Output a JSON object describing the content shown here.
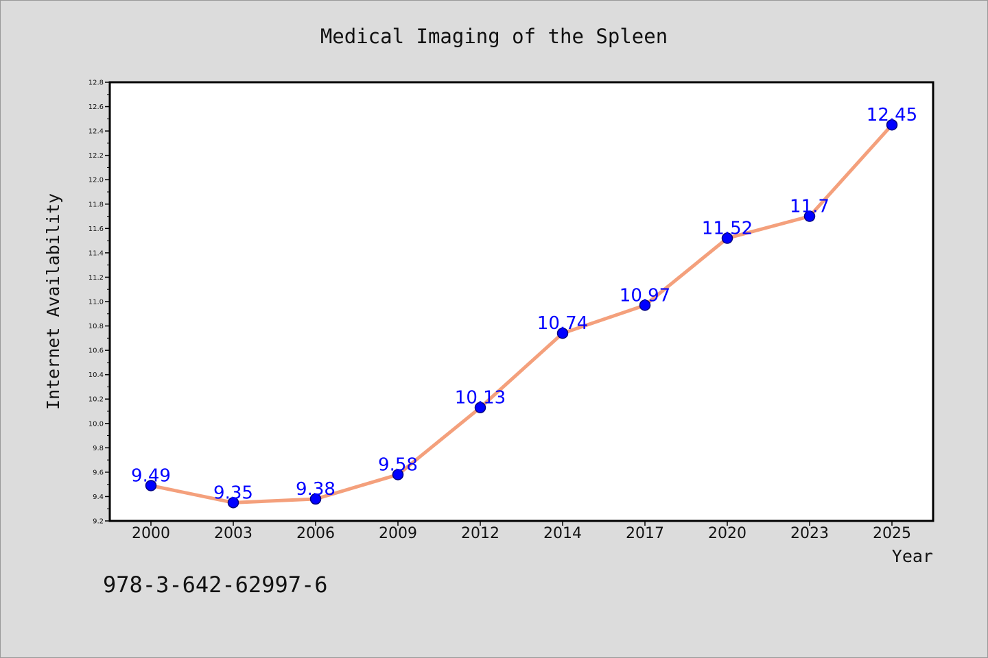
{
  "chart_data": {
    "type": "line",
    "title": "Medical Imaging of the Spleen",
    "xlabel": "Year",
    "ylabel": "Internet Availability",
    "categories": [
      "2000",
      "2003",
      "2006",
      "2009",
      "2012",
      "2014",
      "2017",
      "2020",
      "2023",
      "2025"
    ],
    "series": [
      {
        "values": [
          9.49,
          9.35,
          9.38,
          9.58,
          10.13,
          10.74,
          10.97,
          11.52,
          11.7,
          12.45
        ],
        "labels": [
          "9.49",
          "9.35",
          "9.38",
          "9.58",
          "10.13",
          "10.74",
          "10.97",
          "11.52",
          "11.7",
          "12.45"
        ]
      }
    ],
    "ylim": [
      9.2,
      12.8
    ],
    "yticks": [
      "9.2",
      "9.4",
      "9.6",
      "9.8",
      "10.0",
      "10.2",
      "10.4",
      "10.6",
      "10.8",
      "11.0",
      "11.2",
      "11.4",
      "11.6",
      "11.8",
      "12.0",
      "12.2",
      "12.4",
      "12.6",
      "12.8"
    ],
    "grid": false,
    "legend": "none",
    "colors": {
      "line": "#f4a07c",
      "marker": "#0000ff",
      "label": "#0000ff",
      "background": "#dcdcdc",
      "plot_background": "#ffffff"
    }
  },
  "footer_code": "978-3-642-62997-6"
}
